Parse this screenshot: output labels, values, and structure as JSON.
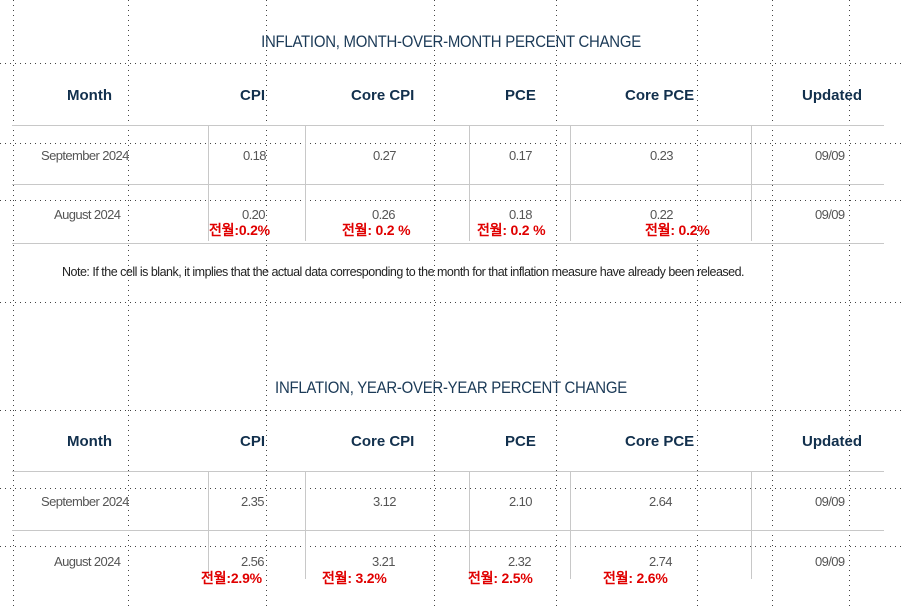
{
  "mom": {
    "title": "INFLATION, MONTH-OVER-MONTH PERCENT CHANGE",
    "headers": {
      "month": "Month",
      "cpi": "CPI",
      "core_cpi": "Core CPI",
      "pce": "PCE",
      "core_pce": "Core PCE",
      "updated": "Updated"
    },
    "rows": [
      {
        "month": "September 2024",
        "cpi": "0.18",
        "core_cpi": "0.27",
        "pce": "0.17",
        "core_pce": "0.23",
        "updated": "09/09"
      },
      {
        "month": "August 2024",
        "cpi": "0.20",
        "core_cpi": "0.26",
        "pce": "0.18",
        "core_pce": "0.22",
        "updated": "09/09"
      }
    ],
    "annotations": {
      "cpi": "전월:0.2%",
      "core_cpi": "전월: 0.2 %",
      "pce": "전월: 0.2 %",
      "core_pce": "전월: 0.2%"
    },
    "note": "Note: If the cell is blank, it implies that the actual data corresponding to the month for that inflation measure have already been released."
  },
  "yoy": {
    "title": "INFLATION, YEAR-OVER-YEAR PERCENT CHANGE",
    "headers": {
      "month": "Month",
      "cpi": "CPI",
      "core_cpi": "Core CPI",
      "pce": "PCE",
      "core_pce": "Core PCE",
      "updated": "Updated"
    },
    "rows": [
      {
        "month": "September 2024",
        "cpi": "2.35",
        "core_cpi": "3.12",
        "pce": "2.10",
        "core_pce": "2.64",
        "updated": "09/09"
      },
      {
        "month": "August 2024",
        "cpi": "2.56",
        "core_cpi": "3.21",
        "pce": "2.32",
        "core_pce": "2.74",
        "updated": "09/09"
      }
    ],
    "annotations": {
      "cpi": "전월:2.9%",
      "core_cpi": "전월: 3.2%",
      "pce": "전월: 2.5%",
      "core_pce": "전월: 2.6%"
    }
  },
  "colors": {
    "title": "#1b3a57",
    "header": "#12304d",
    "annotation": "#e00000",
    "rule": "#c8c8c8"
  }
}
